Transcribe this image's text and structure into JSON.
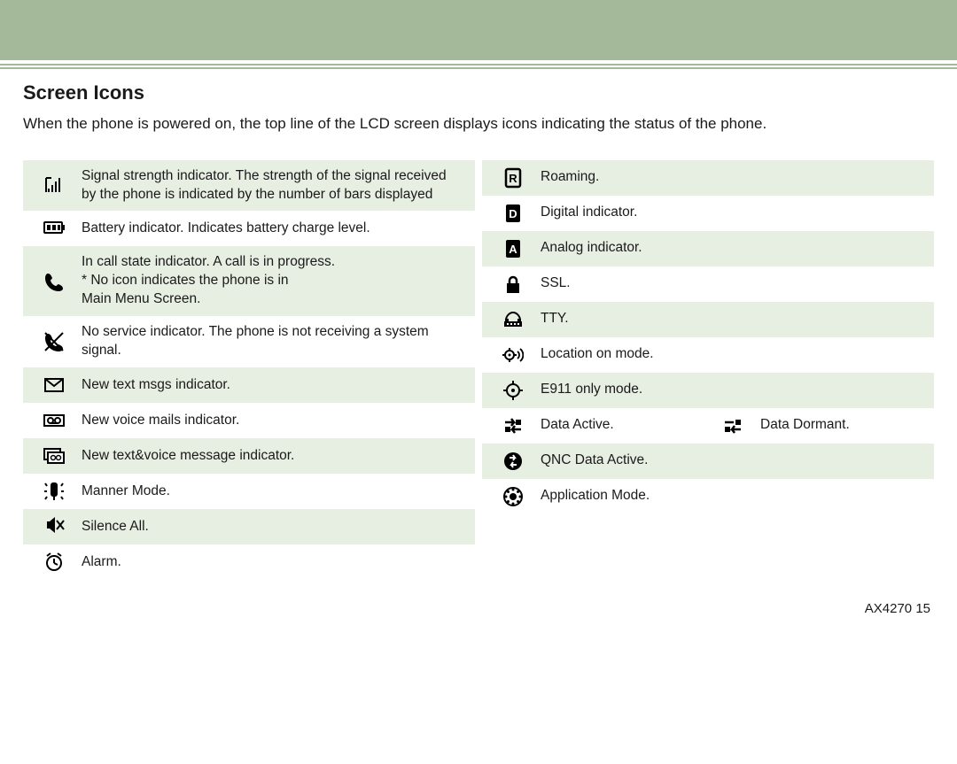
{
  "title": "Screen Icons",
  "intro": "When the phone is powered on, the top line of the LCD screen displays icons indicating the status of the phone.",
  "left": [
    {
      "icon": "signal",
      "text": "Signal strength indicator. The strength of the signal received by the phone is indicated by the number of bars displayed",
      "alt": true
    },
    {
      "icon": "battery",
      "text": "Battery indicator. Indicates battery charge level."
    },
    {
      "icon": "phone",
      "text": "In call state indicator. A call is in progress.\n* No icon indicates the phone is in\n  Main Menu Screen.",
      "alt": true
    },
    {
      "icon": "noservice",
      "text": "No service indicator. The phone is not receiving a system signal."
    },
    {
      "icon": "msg",
      "text": "New text msgs indicator.",
      "alt": true
    },
    {
      "icon": "vmail",
      "text": "New voice mails indicator."
    },
    {
      "icon": "txtvoice",
      "text": "New text&voice message indicator.",
      "alt": true
    },
    {
      "icon": "manner",
      "text": "Manner Mode."
    },
    {
      "icon": "silence",
      "text": "Silence All.",
      "alt": true
    },
    {
      "icon": "alarm",
      "text": "Alarm."
    }
  ],
  "right": [
    {
      "icon": "roaming",
      "text": "Roaming.",
      "alt": true
    },
    {
      "icon": "digital",
      "text": "Digital indicator."
    },
    {
      "icon": "analog",
      "text": "Analog indicator.",
      "alt": true
    },
    {
      "icon": "ssl",
      "text": "SSL."
    },
    {
      "icon": "tty",
      "text": "TTY.",
      "alt": true
    },
    {
      "icon": "location",
      "text": "Location on mode."
    },
    {
      "icon": "e911",
      "text": "E911 only mode.",
      "alt": true
    },
    {
      "icon": "data-active",
      "text": "Data Active.",
      "icon2": "data-dormant",
      "text2": "Data Dormant."
    },
    {
      "icon": "qnc",
      "text": "QNC Data Active.",
      "alt": true
    },
    {
      "icon": "appmode",
      "text": "Application Mode."
    }
  ],
  "footer_model": "AX4270",
  "footer_page": "15",
  "colors": {
    "band": "#a3b99a",
    "alt_row": "#e7eee2"
  }
}
